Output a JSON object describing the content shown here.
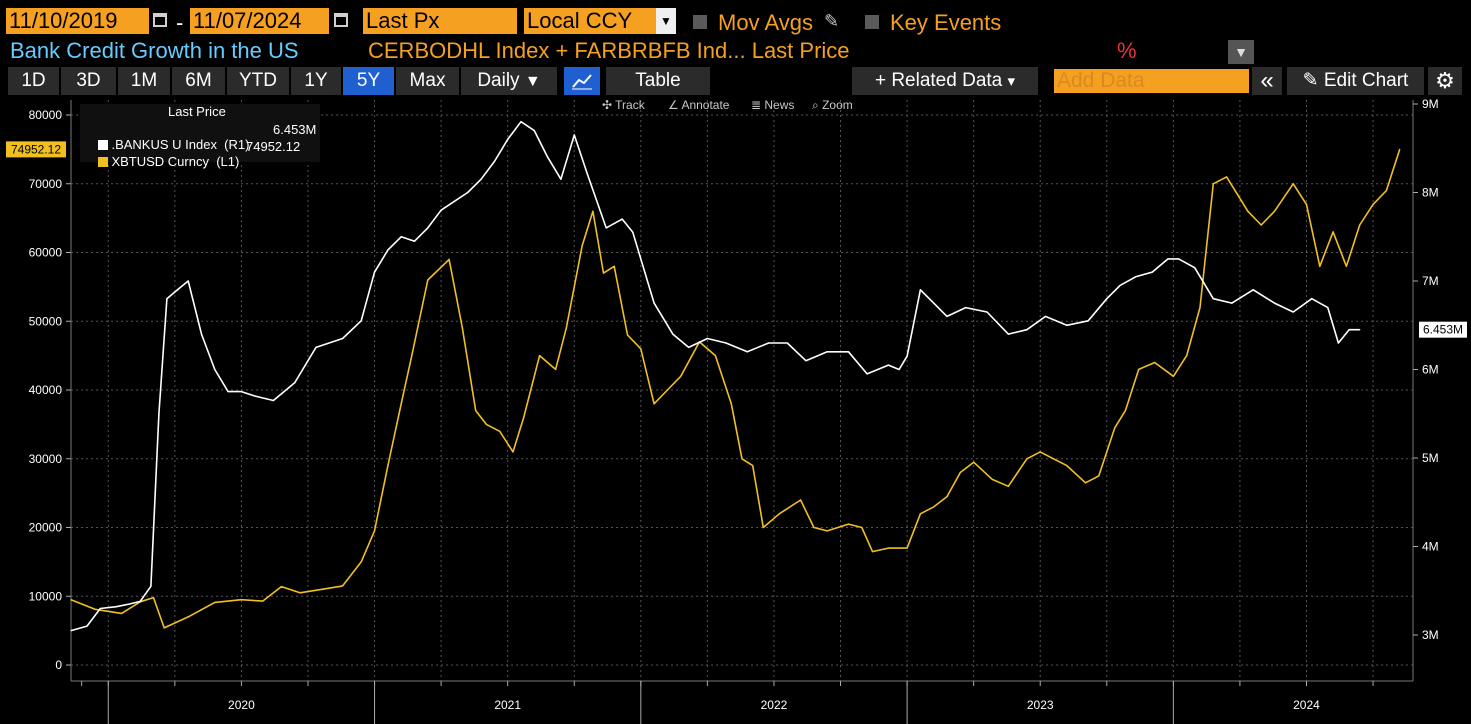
{
  "toolbar_top": {
    "start_date": "11/10/2019",
    "end_date": "11/07/2024",
    "separator": "-",
    "field": "Last Px",
    "currency": "Local CCY",
    "mov_avgs": "Mov Avgs",
    "key_events": "Key Events"
  },
  "header": {
    "title": "Bank Credit Growth in the US",
    "subtitle": "CERBODHL Index + FARBRBFB Ind...  Last Price",
    "percent": "%"
  },
  "range_buttons": [
    "1D",
    "3D",
    "1M",
    "6M",
    "YTD",
    "1Y",
    "5Y",
    "Max"
  ],
  "active_range": "5Y",
  "frequency": "Daily",
  "frequency_arrow": "▼",
  "table_label": "Table",
  "related_data": "+ Related Data",
  "related_arrow": "▾",
  "add_data_placeholder": "Add Data",
  "collapse_icon": "«",
  "edit_chart": "Edit Chart",
  "chart_tools": {
    "track": "Track",
    "annotate": "Annotate",
    "news": "News",
    "zoom": "Zoom"
  },
  "legend": {
    "header": "Last Price",
    "items": [
      {
        "name": ".BANKUS U Index  (R1)",
        "value": "6.453M",
        "color": "#ffffff"
      },
      {
        "name": "XBTUSD Curncy  (L1)",
        "value": "74952.12",
        "color": "#f0c020"
      }
    ]
  },
  "colors": {
    "accent": "#f5a020",
    "title": "#66ccff",
    "active_button": "#1f5fd0",
    "white_series": "#ffffff",
    "gold_series": "#f0c020"
  },
  "chart_data": {
    "type": "line",
    "xlabels": [
      "2020",
      "2021",
      "2022",
      "2023",
      "2024"
    ],
    "left_axis": {
      "ticks": [
        0,
        10000,
        20000,
        30000,
        40000,
        50000,
        60000,
        70000,
        80000
      ],
      "range": [
        0,
        80000
      ],
      "current_tag": "74952.12"
    },
    "right_axis": {
      "ticks": [
        "3M",
        "4M",
        "5M",
        "6M",
        "7M",
        "8M",
        "9M"
      ],
      "tick_values": [
        3,
        4,
        5,
        6,
        7,
        8,
        9
      ],
      "range": [
        2.65,
        9.25
      ],
      "current_tag": "6.453M"
    },
    "grid": true,
    "legend_position": "top-left",
    "series": [
      {
        "name": "XBTUSD Curncy",
        "axis": "left",
        "color": "#f0c020",
        "x": [
          2019.86,
          2019.95,
          2020.05,
          2020.12,
          2020.17,
          2020.21,
          2020.3,
          2020.4,
          2020.5,
          2020.58,
          2020.65,
          2020.72,
          2020.8,
          2020.88,
          2020.95,
          2021.0,
          2021.05,
          2021.1,
          2021.14,
          2021.2,
          2021.28,
          2021.33,
          2021.38,
          2021.42,
          2021.47,
          2021.52,
          2021.56,
          2021.62,
          2021.68,
          2021.72,
          2021.78,
          2021.82,
          2021.86,
          2021.9,
          2021.95,
          2022.0,
          2022.05,
          2022.1,
          2022.15,
          2022.22,
          2022.28,
          2022.34,
          2022.38,
          2022.42,
          2022.46,
          2022.52,
          2022.6,
          2022.65,
          2022.7,
          2022.78,
          2022.83,
          2022.87,
          2022.93,
          2023.0,
          2023.05,
          2023.1,
          2023.15,
          2023.2,
          2023.25,
          2023.32,
          2023.38,
          2023.45,
          2023.5,
          2023.55,
          2023.6,
          2023.67,
          2023.72,
          2023.78,
          2023.82,
          2023.87,
          2023.93,
          2024.0,
          2024.05,
          2024.1,
          2024.15,
          2024.2,
          2024.28,
          2024.33,
          2024.38,
          2024.45,
          2024.5,
          2024.55,
          2024.6,
          2024.65,
          2024.7,
          2024.75,
          2024.8,
          2024.85
        ],
        "y": [
          9500,
          8100,
          7500,
          9200,
          9800,
          5400,
          7000,
          9100,
          9500,
          9300,
          11400,
          10500,
          11000,
          11500,
          15000,
          19500,
          29000,
          38000,
          45000,
          56000,
          59000,
          49000,
          37000,
          35000,
          34000,
          31000,
          36000,
          45000,
          43000,
          49000,
          61000,
          66000,
          57000,
          58000,
          48000,
          46000,
          38000,
          40000,
          42000,
          47000,
          45000,
          38000,
          30000,
          29000,
          20000,
          22000,
          24000,
          20000,
          19500,
          20500,
          20000,
          16500,
          17000,
          17000,
          22000,
          23000,
          24500,
          28000,
          29500,
          27000,
          26000,
          30000,
          31000,
          30000,
          29000,
          26500,
          27500,
          34500,
          37000,
          43000,
          44000,
          42000,
          45000,
          52000,
          70000,
          71000,
          66000,
          64000,
          66000,
          70000,
          67000,
          58000,
          63000,
          58000,
          64000,
          67000,
          69000,
          75000
        ]
      },
      {
        "name": ".BANKUS U Index",
        "axis": "right",
        "color": "#ffffff",
        "x": [
          2019.86,
          2019.92,
          2019.97,
          2020.03,
          2020.08,
          2020.12,
          2020.16,
          2020.19,
          2020.22,
          2020.26,
          2020.3,
          2020.35,
          2020.4,
          2020.45,
          2020.5,
          2020.55,
          2020.62,
          2020.7,
          2020.78,
          2020.88,
          2020.95,
          2021.0,
          2021.05,
          2021.1,
          2021.15,
          2021.2,
          2021.25,
          2021.3,
          2021.35,
          2021.4,
          2021.45,
          2021.5,
          2021.55,
          2021.6,
          2021.65,
          2021.7,
          2021.75,
          2021.8,
          2021.87,
          2021.93,
          2021.97,
          2022.05,
          2022.12,
          2022.18,
          2022.25,
          2022.32,
          2022.4,
          2022.48,
          2022.55,
          2022.62,
          2022.7,
          2022.78,
          2022.85,
          2022.93,
          2022.97,
          2023.0,
          2023.05,
          2023.1,
          2023.15,
          2023.22,
          2023.3,
          2023.38,
          2023.45,
          2023.52,
          2023.6,
          2023.68,
          2023.75,
          2023.8,
          2023.86,
          2023.92,
          2023.98,
          2024.02,
          2024.08,
          2024.15,
          2024.22,
          2024.3,
          2024.38,
          2024.45,
          2024.52,
          2024.58,
          2024.62,
          2024.66,
          2024.7
        ],
        "y": [
          3.05,
          3.1,
          3.3,
          3.32,
          3.35,
          3.38,
          3.55,
          5.5,
          6.8,
          6.9,
          7.0,
          6.4,
          6.0,
          5.75,
          5.75,
          5.7,
          5.65,
          5.85,
          6.25,
          6.35,
          6.55,
          7.1,
          7.35,
          7.5,
          7.45,
          7.6,
          7.8,
          7.9,
          8.0,
          8.15,
          8.35,
          8.6,
          8.8,
          8.7,
          8.4,
          8.15,
          8.65,
          8.2,
          7.6,
          7.7,
          7.55,
          6.75,
          6.4,
          6.25,
          6.35,
          6.3,
          6.2,
          6.3,
          6.3,
          6.1,
          6.2,
          6.2,
          5.95,
          6.05,
          6.0,
          6.15,
          6.9,
          6.75,
          6.6,
          6.7,
          6.65,
          6.4,
          6.45,
          6.6,
          6.5,
          6.55,
          6.8,
          6.95,
          7.05,
          7.1,
          7.25,
          7.25,
          7.15,
          6.8,
          6.75,
          6.9,
          6.75,
          6.65,
          6.8,
          6.7,
          6.3,
          6.45,
          6.45
        ]
      }
    ]
  }
}
